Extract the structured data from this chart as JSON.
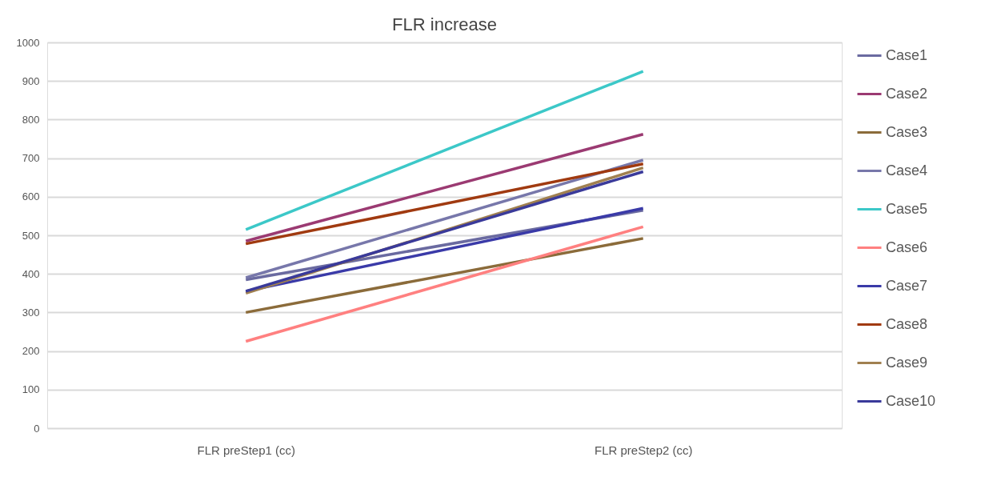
{
  "chart_data": {
    "type": "line",
    "title": "FLR increase",
    "categories": [
      "FLR preStep1 (cc)",
      "FLR preStep2 (cc)"
    ],
    "series": [
      {
        "name": "Case1",
        "color": "#6a6aa0",
        "values": [
          385,
          565
        ]
      },
      {
        "name": "Case2",
        "color": "#9b3a72",
        "values": [
          485,
          762
        ]
      },
      {
        "name": "Case3",
        "color": "#8b6b3a",
        "values": [
          300,
          492
        ]
      },
      {
        "name": "Case4",
        "color": "#7777aa",
        "values": [
          390,
          695
        ]
      },
      {
        "name": "Case5",
        "color": "#3cc8c8",
        "values": [
          515,
          925
        ]
      },
      {
        "name": "Case6",
        "color": "#ff8080",
        "values": [
          225,
          522
        ]
      },
      {
        "name": "Case7",
        "color": "#3a3aa8",
        "values": [
          355,
          570
        ]
      },
      {
        "name": "Case8",
        "color": "#a03a10",
        "values": [
          478,
          685
        ]
      },
      {
        "name": "Case9",
        "color": "#a08050",
        "values": [
          350,
          675
        ]
      },
      {
        "name": "Case10",
        "color": "#3a3a9a",
        "values": [
          355,
          665
        ]
      }
    ],
    "ylim": [
      0,
      1000
    ],
    "yticks": [
      0,
      100,
      200,
      300,
      400,
      500,
      600,
      700,
      800,
      900,
      1000
    ],
    "grid": "y",
    "legend": "right",
    "marker": "none",
    "line_style": "solid"
  }
}
